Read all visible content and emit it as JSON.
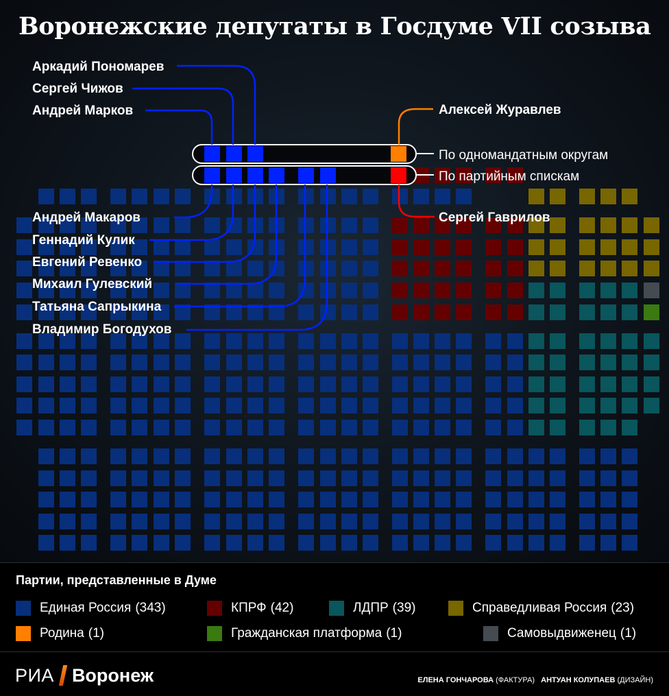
{
  "title": "Воронежские депутаты в Госдуме VII созыва",
  "colors": {
    "united_russia": "#072f7c",
    "kprf": "#650000",
    "ldpr": "#09565c",
    "sr": "#786600",
    "rodina": "#ff7f00",
    "civic_platform": "#3a7a10",
    "independent": "#444b51",
    "highlight_list": "#0022ff",
    "highlight_single": "#ff0000"
  },
  "chart_data": {
    "type": "seat-map",
    "title": "Воронежские депутаты в Госдуме VII созыва",
    "total_seats": 450,
    "parties": [
      {
        "key": "united_russia",
        "name": "Единая Россия",
        "seats": 343
      },
      {
        "key": "kprf",
        "name": "КПРФ",
        "seats": 42
      },
      {
        "key": "ldpr",
        "name": "ЛДПР",
        "seats": 39
      },
      {
        "key": "sr",
        "name": "Справедливая Россия",
        "seats": 23
      },
      {
        "key": "rodina",
        "name": "Родина",
        "seats": 1
      },
      {
        "key": "civic_platform",
        "name": "Гражданская платформа",
        "seats": 1
      },
      {
        "key": "independent",
        "name": "Самовыдвиженец",
        "seats": 1
      }
    ],
    "mandate_types": {
      "single": "По одномандатным округам",
      "list": "По партийным спискам"
    },
    "voronezh_deputies": [
      {
        "name": "Аркадий Пономарев",
        "party": "Единая Россия",
        "mandate": "single"
      },
      {
        "name": "Сергей Чижов",
        "party": "Единая Россия",
        "mandate": "single"
      },
      {
        "name": "Андрей Марков",
        "party": "Единая Россия",
        "mandate": "single"
      },
      {
        "name": "Алексей Журавлев",
        "party": "Родина",
        "mandate": "single"
      },
      {
        "name": "Андрей Макаров",
        "party": "Единая Россия",
        "mandate": "list"
      },
      {
        "name": "Геннадий Кулик",
        "party": "Единая Россия",
        "mandate": "list"
      },
      {
        "name": "Евгений Ревенко",
        "party": "Единая Россия",
        "mandate": "list"
      },
      {
        "name": "Михаил Гулевский",
        "party": "Единая Россия",
        "mandate": "list"
      },
      {
        "name": "Татьяна Сапрыкина",
        "party": "Единая Россия",
        "mandate": "list"
      },
      {
        "name": "Владимир Богодухов",
        "party": "Единая Россия",
        "mandate": "list"
      },
      {
        "name": "Сергей Гаврилов",
        "party": "КПРФ",
        "mandate": "list"
      }
    ]
  },
  "legend": {
    "title": "Партии, представленные в Думе",
    "items": [
      {
        "label": "Единая Россия",
        "count": "(343)",
        "color": "#072f7c"
      },
      {
        "label": "КПРФ",
        "count": "(42)",
        "color": "#650000"
      },
      {
        "label": "ЛДПР",
        "count": "(39)",
        "color": "#09565c"
      },
      {
        "label": "Справедливая Россия",
        "count": "(23)",
        "color": "#786600"
      },
      {
        "label": "Родина",
        "count": "(1)",
        "color": "#ff7f00"
      },
      {
        "label": "Гражданская платформа",
        "count": "(1)",
        "color": "#3a7a10"
      },
      {
        "label": "Самовыдвиженец",
        "count": "(1)",
        "color": "#444b51"
      }
    ]
  },
  "footer": {
    "logo_ria": "РИА",
    "logo_city": "Воронеж",
    "credit1_name": "ЕЛЕНА ГОНЧАРОВА",
    "credit1_role": "(ФАКТУРА)",
    "credit2_name": "АНТУАН КОЛУПАЕВ",
    "credit2_role": "(ДИЗАЙН)"
  }
}
